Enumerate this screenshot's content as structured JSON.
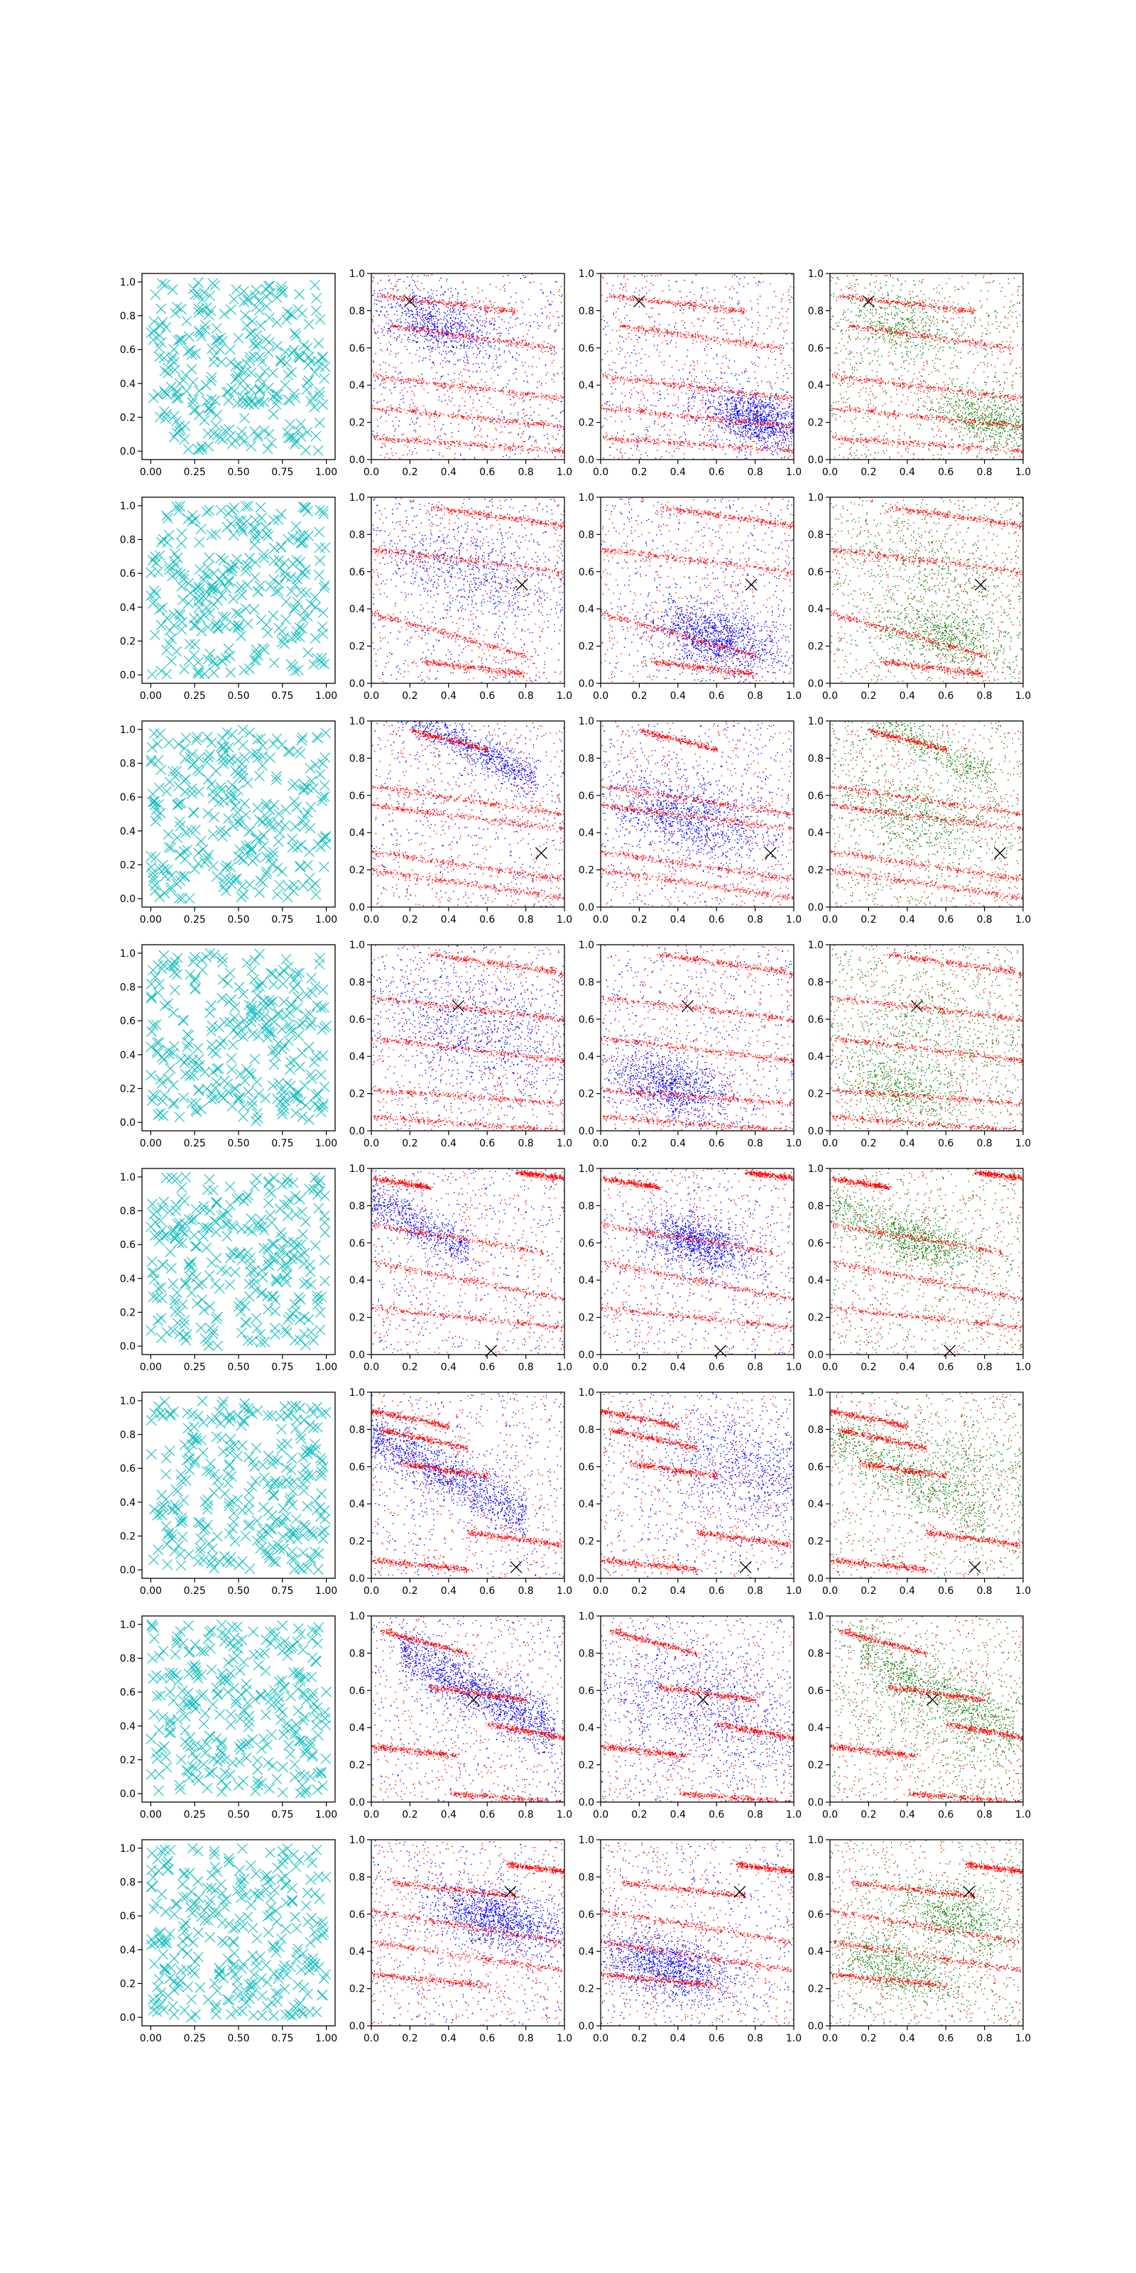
{
  "figure": {
    "rows": 8,
    "cols": 4,
    "colors": {
      "cyan": "#17bfbf",
      "red": "#ff0000",
      "blue": "#0000ff",
      "green": "#008000",
      "marker": "#000000"
    }
  },
  "chart_data": {
    "type": "scatter",
    "grid": false,
    "panel_types": [
      "cyan-x-markers",
      "red-blue-points",
      "red-blue-points",
      "red-green-points"
    ],
    "col0_axes": {
      "xlim": [
        -0.05,
        1.05
      ],
      "ylim": [
        -0.05,
        1.05
      ],
      "xticks": [
        0.0,
        0.25,
        0.5,
        0.75,
        1.0
      ],
      "xtick_labels": [
        "0.00",
        "0.25",
        "0.50",
        "0.75",
        "1.00"
      ],
      "yticks": [
        0.0,
        0.2,
        0.4,
        0.6,
        0.8,
        1.0
      ],
      "ytick_labels": [
        "0.0",
        "0.2",
        "0.4",
        "0.6",
        "0.8",
        "1.0"
      ]
    },
    "other_axes": {
      "xlim": [
        0,
        1
      ],
      "ylim": [
        0,
        1
      ],
      "xticks": [
        0.0,
        0.2,
        0.4,
        0.6,
        0.8,
        1.0
      ],
      "xtick_labels": [
        "0.0",
        "0.2",
        "0.4",
        "0.6",
        "0.8",
        "1.0"
      ],
      "yticks": [
        0.0,
        0.2,
        0.4,
        0.6,
        0.8,
        1.0
      ],
      "ytick_labels": [
        "0.0",
        "0.2",
        "0.4",
        "0.6",
        "0.8",
        "1.0"
      ]
    },
    "rows": [
      {
        "marker": [
          0.2,
          0.85
        ],
        "seed": 11,
        "b1": {
          "type": "mid",
          "cx": 0.35,
          "cy": 0.72,
          "spread": 0.12,
          "n": 400
        },
        "b2": {
          "type": "bottom",
          "cx": 0.82,
          "cy": 0.22,
          "spread": 0.1,
          "n": 600
        },
        "stripes": [
          [
            0.05,
            0.88,
            0.75,
            0.8
          ],
          [
            0.1,
            0.72,
            0.95,
            0.6
          ],
          [
            0.0,
            0.45,
            1.0,
            0.33
          ],
          [
            0.0,
            0.28,
            1.0,
            0.18
          ],
          [
            0.0,
            0.12,
            1.0,
            0.05
          ]
        ]
      },
      {
        "marker": [
          0.78,
          0.53
        ],
        "seed": 23,
        "b1": {
          "type": "mid",
          "cx": 0.5,
          "cy": 0.6,
          "spread": 0.18,
          "n": 300
        },
        "b2": {
          "type": "bottom",
          "cx": 0.6,
          "cy": 0.25,
          "spread": 0.12,
          "n": 600
        },
        "stripes": [
          [
            0.3,
            0.95,
            1.0,
            0.85
          ],
          [
            0.0,
            0.72,
            1.0,
            0.6
          ],
          [
            0.0,
            0.38,
            0.8,
            0.15
          ],
          [
            0.25,
            0.12,
            0.8,
            0.05
          ]
        ]
      },
      {
        "marker": [
          0.88,
          0.29
        ],
        "seed": 37,
        "b1": {
          "type": "band",
          "cx": 0.45,
          "cy": 0.9,
          "spread": 0.1,
          "n": 500
        },
        "b2": {
          "type": "mid",
          "cx": 0.45,
          "cy": 0.48,
          "spread": 0.15,
          "n": 500
        },
        "stripes": [
          [
            0.2,
            0.95,
            0.6,
            0.85
          ],
          [
            0.0,
            0.65,
            1.0,
            0.5
          ],
          [
            0.0,
            0.55,
            1.0,
            0.42
          ],
          [
            0.0,
            0.3,
            1.0,
            0.15
          ],
          [
            0.0,
            0.2,
            1.0,
            0.05
          ]
        ]
      },
      {
        "marker": [
          0.45,
          0.67
        ],
        "seed": 49,
        "b1": {
          "type": "mid",
          "cx": 0.55,
          "cy": 0.55,
          "spread": 0.22,
          "n": 400
        },
        "b2": {
          "type": "bottom",
          "cx": 0.35,
          "cy": 0.25,
          "spread": 0.12,
          "n": 500
        },
        "stripes": [
          [
            0.0,
            0.72,
            1.0,
            0.6
          ],
          [
            0.0,
            0.5,
            1.0,
            0.38
          ],
          [
            0.0,
            0.22,
            1.0,
            0.15
          ],
          [
            0.3,
            0.95,
            1.0,
            0.85
          ],
          [
            0.0,
            0.08,
            1.0,
            0.0
          ]
        ]
      },
      {
        "marker": [
          0.62,
          0.02
        ],
        "seed": 61,
        "b1": {
          "type": "band",
          "cx": 0.1,
          "cy": 0.78,
          "spread": 0.12,
          "n": 500
        },
        "b2": {
          "type": "mid",
          "cx": 0.5,
          "cy": 0.6,
          "spread": 0.1,
          "n": 500
        },
        "stripes": [
          [
            0.0,
            0.95,
            0.3,
            0.9
          ],
          [
            0.75,
            0.98,
            1.0,
            0.95
          ],
          [
            0.0,
            0.7,
            0.9,
            0.55
          ],
          [
            0.0,
            0.5,
            1.0,
            0.3
          ],
          [
            0.0,
            0.25,
            1.0,
            0.15
          ]
        ]
      },
      {
        "marker": [
          0.75,
          0.06
        ],
        "seed": 73,
        "b1": {
          "type": "band",
          "cx": 0.4,
          "cy": 0.55,
          "spread": 0.14,
          "n": 600
        },
        "b2": {
          "type": "mid",
          "cx": 0.75,
          "cy": 0.6,
          "spread": 0.18,
          "n": 400
        },
        "stripes": [
          [
            0.05,
            0.8,
            0.5,
            0.7
          ],
          [
            0.15,
            0.62,
            0.6,
            0.55
          ],
          [
            0.5,
            0.25,
            1.0,
            0.18
          ],
          [
            0.0,
            0.1,
            0.5,
            0.05
          ],
          [
            0.0,
            0.9,
            0.4,
            0.82
          ]
        ]
      },
      {
        "marker": [
          0.53,
          0.55
        ],
        "seed": 89,
        "b1": {
          "type": "band",
          "cx": 0.55,
          "cy": 0.6,
          "spread": 0.14,
          "n": 700
        },
        "b2": {
          "type": "mid",
          "cx": 0.55,
          "cy": 0.5,
          "spread": 0.25,
          "n": 500
        },
        "stripes": [
          [
            0.05,
            0.92,
            0.5,
            0.8
          ],
          [
            0.3,
            0.62,
            0.8,
            0.55
          ],
          [
            0.0,
            0.3,
            0.45,
            0.25
          ],
          [
            0.6,
            0.42,
            1.0,
            0.35
          ],
          [
            0.4,
            0.05,
            1.0,
            0.0
          ]
        ]
      },
      {
        "marker": [
          0.72,
          0.72
        ],
        "seed": 97,
        "b1": {
          "type": "mid",
          "cx": 0.65,
          "cy": 0.58,
          "spread": 0.12,
          "n": 600
        },
        "b2": {
          "type": "bottom",
          "cx": 0.35,
          "cy": 0.32,
          "spread": 0.12,
          "n": 600
        },
        "stripes": [
          [
            0.1,
            0.77,
            0.75,
            0.7
          ],
          [
            0.0,
            0.62,
            1.0,
            0.45
          ],
          [
            0.0,
            0.45,
            1.0,
            0.3
          ],
          [
            0.7,
            0.87,
            1.0,
            0.83
          ],
          [
            0.0,
            0.28,
            0.6,
            0.22
          ]
        ]
      }
    ]
  }
}
